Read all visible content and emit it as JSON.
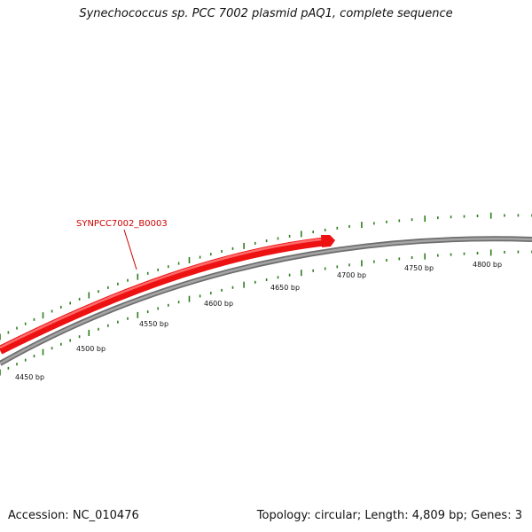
{
  "title": "Synechococcus sp. PCC 7002 plasmid pAQ1, complete sequence",
  "footer": {
    "accession": "Accession: NC_010476",
    "summary": "Topology: circular; Length: 4,809 bp; Genes: 3"
  },
  "colors": {
    "gene": "#ee1111",
    "gene_label": "#cc0000",
    "backbone": "#8a8a8a",
    "ticks": "#2e7d1e",
    "text": "#111111"
  },
  "map": {
    "topology": "circular",
    "length_bp": 4809,
    "gene_count": 3,
    "scale_labels": [
      {
        "bp": 4450,
        "text": "4450 bp"
      },
      {
        "bp": 4500,
        "text": "4500 bp"
      },
      {
        "bp": 4550,
        "text": "4550 bp"
      },
      {
        "bp": 4600,
        "text": "4600 bp"
      },
      {
        "bp": 4650,
        "text": "4650 bp"
      },
      {
        "bp": 4700,
        "text": "4700 bp"
      },
      {
        "bp": 4750,
        "text": "4750 bp"
      },
      {
        "bp": 4800,
        "text": "4800 bp"
      }
    ],
    "genes": [
      {
        "name": "SYNPCC7002_B0003",
        "strand": "+"
      }
    ]
  }
}
